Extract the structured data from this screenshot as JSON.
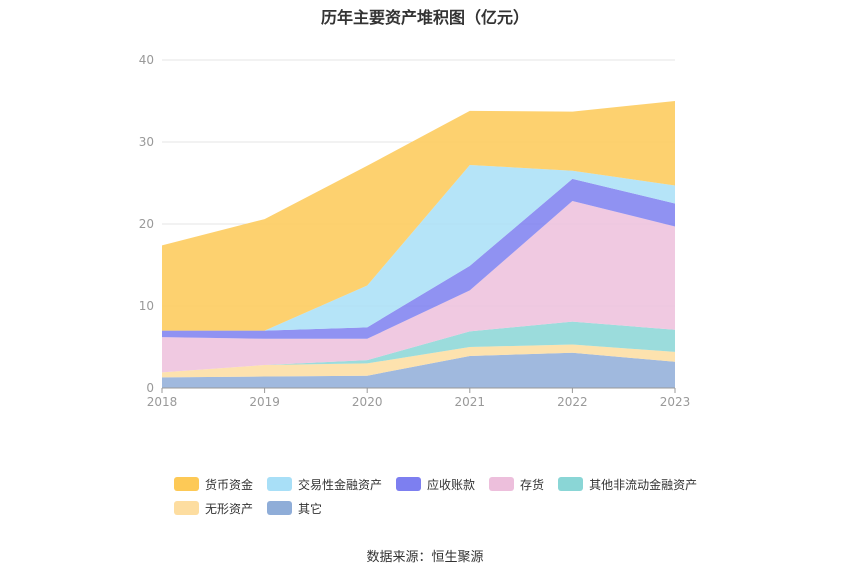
{
  "title": "历年主要资产堆积图（亿元）",
  "source": "数据来源：恒生聚源",
  "chart_data": {
    "type": "area",
    "stacked": true,
    "x": [
      "2018",
      "2019",
      "2020",
      "2021",
      "2022",
      "2023"
    ],
    "ylim": [
      0,
      40
    ],
    "yticks": [
      "0",
      "10",
      "20",
      "30",
      "40"
    ],
    "grid": true,
    "legend_position": "bottom",
    "series": [
      {
        "name": "其它",
        "color": "#8fadd8",
        "values": [
          1.3,
          1.4,
          1.5,
          3.9,
          4.3,
          3.2
        ]
      },
      {
        "name": "无形资产",
        "color": "#fddda0",
        "values": [
          0.6,
          1.4,
          1.5,
          1.1,
          1.0,
          1.2
        ]
      },
      {
        "name": "其他非流动金融资产",
        "color": "#8ad6d6",
        "values": [
          0.0,
          0.0,
          0.4,
          1.9,
          2.8,
          2.7
        ]
      },
      {
        "name": "存货",
        "color": "#edbfdc",
        "values": [
          4.3,
          3.2,
          2.6,
          5.0,
          14.7,
          12.6
        ]
      },
      {
        "name": "应收账款",
        "color": "#7d7ff0",
        "values": [
          0.8,
          1.0,
          1.4,
          3.0,
          2.7,
          2.8
        ]
      },
      {
        "name": "交易性金融资产",
        "color": "#a8dff7",
        "values": [
          0.0,
          0.0,
          5.1,
          12.3,
          1.0,
          2.2
        ]
      },
      {
        "name": "货币资金",
        "color": "#fdc956",
        "values": [
          10.4,
          13.6,
          14.6,
          6.6,
          7.2,
          10.3
        ]
      }
    ],
    "legend_order": [
      "货币资金",
      "交易性金融资产",
      "应收账款",
      "存货",
      "其他非流动金融资产",
      "无形资产",
      "其它"
    ]
  }
}
